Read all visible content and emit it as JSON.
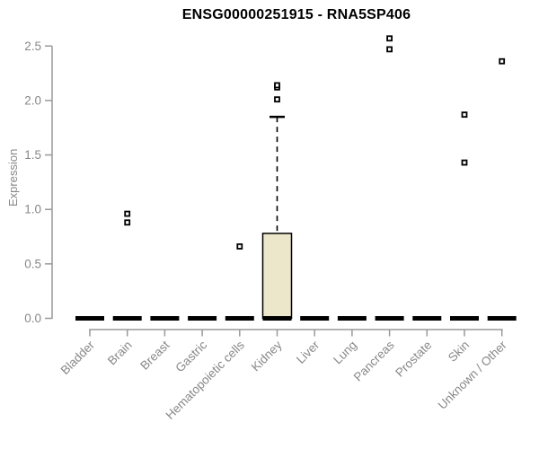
{
  "page": {
    "background": "#ffffff"
  },
  "chart_data": {
    "type": "boxplot",
    "title": "ENSG00000251915 - RNA5SP406",
    "xlabel": "",
    "ylabel": "Expression",
    "ylim": [
      0,
      2.5
    ],
    "yticks": [
      "0.0",
      "0.5",
      "1.0",
      "1.5",
      "2.0",
      "2.5"
    ],
    "grid": false,
    "legend": false,
    "categories": [
      "Bladder",
      "Brain",
      "Breast",
      "Gastric",
      "Hematopoietic cells",
      "Kidney",
      "Liver",
      "Lung",
      "Pancreas",
      "Prostate",
      "Skin",
      "Unknown / Other"
    ],
    "boxes": [
      {
        "category": "Bladder",
        "min": 0,
        "q1": 0,
        "median": 0,
        "q3": 0,
        "max": 0,
        "outliers": []
      },
      {
        "category": "Brain",
        "min": 0,
        "q1": 0,
        "median": 0,
        "q3": 0,
        "max": 0,
        "outliers": [
          0.88,
          0.96
        ]
      },
      {
        "category": "Breast",
        "min": 0,
        "q1": 0,
        "median": 0,
        "q3": 0,
        "max": 0,
        "outliers": []
      },
      {
        "category": "Gastric",
        "min": 0,
        "q1": 0,
        "median": 0,
        "q3": 0,
        "max": 0,
        "outliers": []
      },
      {
        "category": "Hematopoietic cells",
        "min": 0,
        "q1": 0,
        "median": 0,
        "q3": 0,
        "max": 0,
        "outliers": [
          0.66
        ]
      },
      {
        "category": "Kidney",
        "min": 0,
        "q1": 0,
        "median": 0,
        "q3": 0.78,
        "max": 1.85,
        "outliers": [
          2.01,
          2.12,
          2.14
        ]
      },
      {
        "category": "Liver",
        "min": 0,
        "q1": 0,
        "median": 0,
        "q3": 0,
        "max": 0,
        "outliers": []
      },
      {
        "category": "Lung",
        "min": 0,
        "q1": 0,
        "median": 0,
        "q3": 0,
        "max": 0,
        "outliers": []
      },
      {
        "category": "Pancreas",
        "min": 0,
        "q1": 0,
        "median": 0,
        "q3": 0,
        "max": 0,
        "outliers": [
          2.47,
          2.57
        ]
      },
      {
        "category": "Prostate",
        "min": 0,
        "q1": 0,
        "median": 0,
        "q3": 0,
        "max": 0,
        "outliers": []
      },
      {
        "category": "Skin",
        "min": 0,
        "q1": 0,
        "median": 0,
        "q3": 0,
        "max": 0,
        "outliers": [
          1.43,
          1.87
        ]
      },
      {
        "category": "Unknown / Other",
        "min": 0,
        "q1": 0,
        "median": 0,
        "q3": 0,
        "max": 0,
        "outliers": [
          2.36
        ]
      }
    ],
    "colors": {
      "box_fill": "#ECE7CB",
      "box_stroke": "#000000",
      "median": "#000000",
      "outlier_stroke": "#000000",
      "axis": "#999999",
      "tick_label": "#888888",
      "title": "#000000"
    }
  }
}
